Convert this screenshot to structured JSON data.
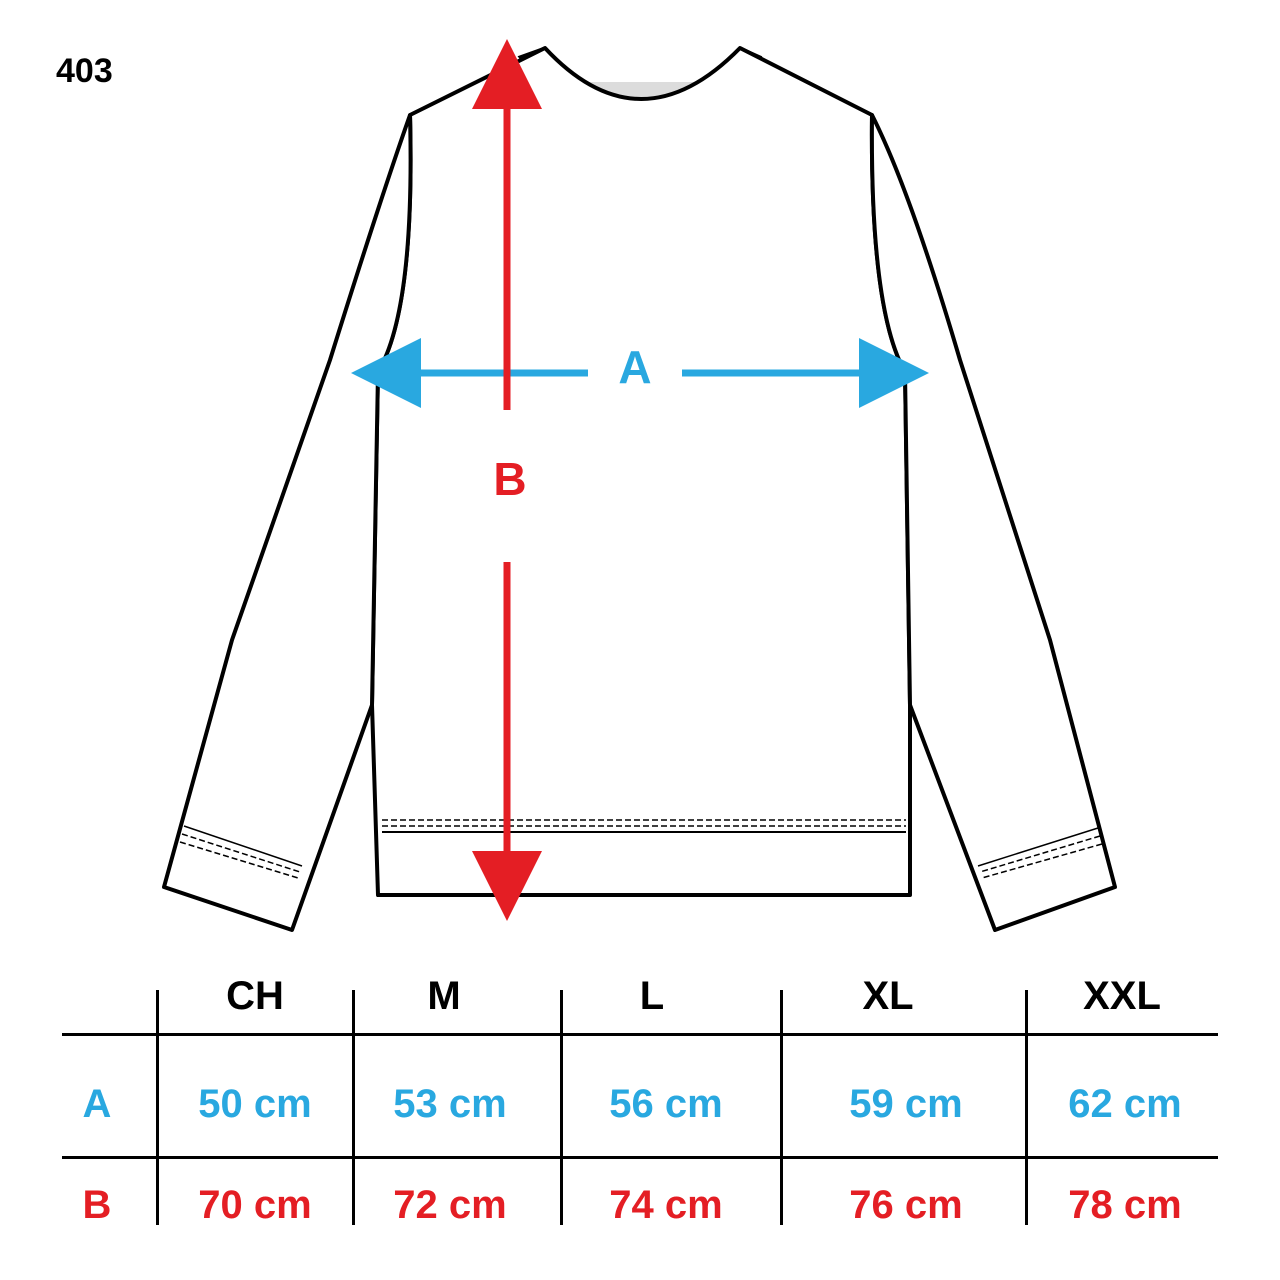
{
  "product_code": "403",
  "measure_labels": {
    "a": "A",
    "b": "B"
  },
  "colors": {
    "a": "#29A8E0",
    "b": "#E41E24",
    "outline": "#000000"
  },
  "table": {
    "sizes": [
      "CH",
      "M",
      "L",
      "XL",
      "XXL"
    ],
    "rows": [
      {
        "label": "A",
        "values": [
          "50 cm",
          "53 cm",
          "56 cm",
          "59 cm",
          "62 cm"
        ]
      },
      {
        "label": "B",
        "values": [
          "70 cm",
          "72 cm",
          "74 cm",
          "76 cm",
          "78 cm"
        ]
      }
    ]
  }
}
